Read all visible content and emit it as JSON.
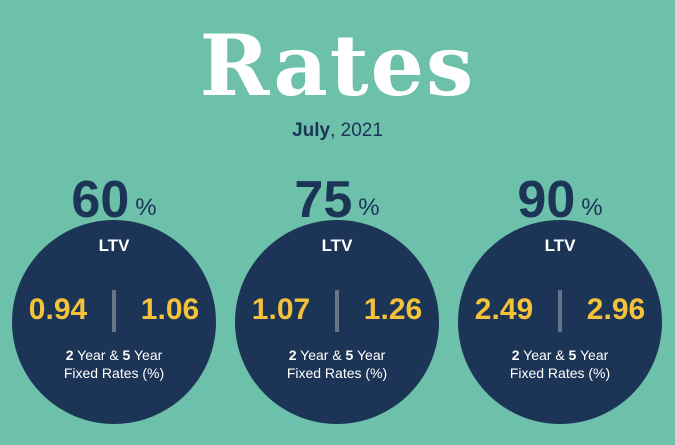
{
  "title": "Rates",
  "date": {
    "month": "July",
    "year": ", 2021"
  },
  "tiers": [
    {
      "ltv_value": "60",
      "percent_symbol": "%",
      "ltv_label": "LTV",
      "rate_2yr": "0.94",
      "rate_5yr": "1.06",
      "caption_num1": "2",
      "caption_mid": " Year & ",
      "caption_num2": "5",
      "caption_tail": " Year",
      "caption_line2": "Fixed Rates (%)"
    },
    {
      "ltv_value": "75",
      "percent_symbol": "%",
      "ltv_label": "LTV",
      "rate_2yr": "1.07",
      "rate_5yr": "1.26",
      "caption_num1": "2",
      "caption_mid": " Year & ",
      "caption_num2": "5",
      "caption_tail": " Year",
      "caption_line2": "Fixed Rates (%)"
    },
    {
      "ltv_value": "90",
      "percent_symbol": "%",
      "ltv_label": "LTV",
      "rate_2yr": "2.49",
      "rate_5yr": "2.96",
      "caption_num1": "2",
      "caption_mid": " Year & ",
      "caption_num2": "5",
      "caption_tail": " Year",
      "caption_line2": "Fixed Rates (%)"
    }
  ],
  "colors": {
    "background": "#6dc0a9",
    "navy": "#1c3456",
    "rate_yellow": "#f3c23a",
    "white": "#ffffff"
  }
}
